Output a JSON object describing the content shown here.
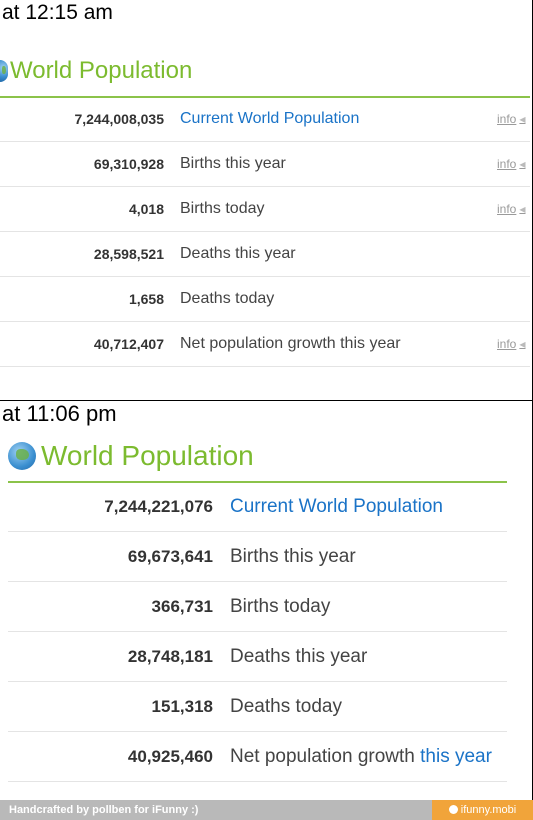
{
  "panel1": {
    "caption": "at 12:15 am",
    "title": "World Population",
    "rows": [
      {
        "value": "7,244,008,035",
        "label": "Current World Population",
        "info": "info"
      },
      {
        "value": "69,310,928",
        "label": "Births this year",
        "info": "info"
      },
      {
        "value": "4,018",
        "label": "Births today",
        "info": "info"
      },
      {
        "value": "28,598,521",
        "label": "Deaths this year",
        "info": ""
      },
      {
        "value": "1,658",
        "label": "Deaths today",
        "info": ""
      },
      {
        "value": "40,712,407",
        "label": "Net population growth this year",
        "info": "info"
      }
    ]
  },
  "panel2": {
    "caption": "at 11:06 pm",
    "title": "World Population",
    "rows": [
      {
        "value": "7,244,221,076",
        "label": "Current World Population"
      },
      {
        "value": "69,673,641",
        "label": "Births this year"
      },
      {
        "value": "366,731",
        "label": "Births today"
      },
      {
        "value": "28,748,181",
        "label": "Deaths this year"
      },
      {
        "value": "151,318",
        "label": "Deaths today"
      },
      {
        "value": "40,925,460",
        "label_main": "Net population growth",
        "label_link": "this year"
      }
    ]
  },
  "footer": {
    "credit": "Handcrafted by pollben for iFunny :)",
    "site": "ifunny.mobi"
  },
  "colors": {
    "title_green": "#7cbb2f",
    "link_blue": "#1a73c7",
    "rule_green": "#8bc34a",
    "footer_gray": "#b9b9b9",
    "footer_orange": "#f1a43a"
  }
}
